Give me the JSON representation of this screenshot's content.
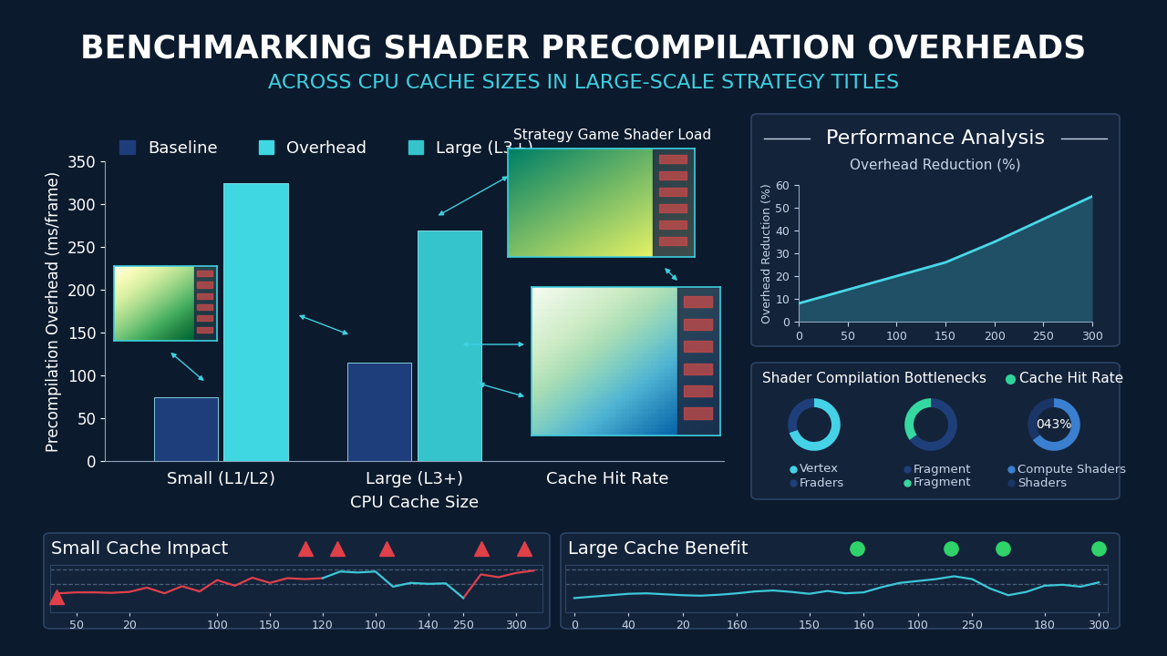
{
  "chart_data": [
    {
      "type": "bar",
      "title": "BENCHMARKING SHADER PRECOMPILATION OVERHEADS",
      "subtitle": "ACROSS CPU CACHE SIZES IN LARGE-SCALE STRATEGY TITLES",
      "annotations": [
        "Strategy Game Shader Load"
      ],
      "x_label": "CPU Cache Size",
      "y_label": "Precompilation Overhead (ms/frame)",
      "categories": [
        "Small (L1/L2)",
        "Large (L3+)",
        "Cache Hit Rate"
      ],
      "series": [
        {
          "name": "Baseline",
          "color": "#1e3d7b",
          "values": [
            75,
            115,
            null
          ]
        },
        {
          "name": "Overhead",
          "color": "#3fd8e2",
          "values": [
            325,
            null,
            null
          ]
        },
        {
          "name": "Large (L3+)",
          "color": "#35c3cc",
          "values": [
            null,
            269,
            null
          ]
        }
      ],
      "ylim": [
        0,
        350
      ],
      "yticks": [
        0,
        50,
        100,
        150,
        200,
        250,
        300,
        350
      ],
      "legend": "upper left",
      "grid": false
    },
    {
      "type": "line",
      "title": "Performance Analysis",
      "subtitle": "Overhead Reduction (%)",
      "y_label": "Overhead Reduction (%)",
      "x": [
        0,
        50,
        100,
        150,
        200,
        250,
        300
      ],
      "values": [
        8,
        14,
        20,
        26,
        35,
        45,
        55
      ],
      "color": "#48d8e8",
      "xlim": [
        0,
        300
      ],
      "xticks": [
        0,
        50,
        100,
        150,
        200,
        250,
        300
      ],
      "ylim": [
        0,
        60
      ],
      "yticks": [
        0,
        10,
        20,
        30,
        40,
        50,
        60
      ],
      "grid": false
    },
    {
      "type": "pie",
      "title": "Shader Compilation Bottlenecks",
      "categories": [
        "Vertex",
        "Fraders"
      ],
      "values": [
        70,
        30
      ],
      "colors": [
        "#45d2e6",
        "#1f3f7a"
      ]
    },
    {
      "type": "pie",
      "categories": [
        "Fragment",
        "Fragment"
      ],
      "values": [
        65,
        35
      ],
      "colors": [
        "#1f3f7a",
        "#35d8a0"
      ]
    },
    {
      "type": "pie",
      "title": "Cache Hit Rate",
      "center_label": "043%",
      "categories": [
        "Compute Shaders",
        "Shaders"
      ],
      "values": [
        65,
        35
      ],
      "colors": [
        "#3a7fd0",
        "#1a3566"
      ]
    },
    {
      "type": "line",
      "title": "Small Cache Impact",
      "categories": [
        null,
        "50",
        null,
        null,
        "20",
        null,
        null,
        null,
        null,
        "100",
        null,
        null,
        "150",
        null,
        null,
        "120",
        null,
        null,
        "100",
        null,
        null,
        "140",
        null,
        "250",
        null,
        null,
        "300",
        null
      ],
      "series": [
        {
          "color": "#e0404a",
          "values": [
            4.0,
            4.2,
            4.2,
            4.1,
            4.3,
            5.2,
            4.0,
            5.5,
            4.4,
            6.8,
            5.6,
            7.3,
            6.2,
            7.2,
            7.0,
            7.2,
            null,
            null,
            null,
            null,
            null,
            null,
            null,
            3.0,
            8.0,
            7.4,
            8.3,
            8.8
          ]
        },
        {
          "color": "#3cc8d8",
          "values": [
            null,
            null,
            null,
            null,
            null,
            null,
            null,
            null,
            null,
            null,
            null,
            null,
            null,
            null,
            null,
            7.2,
            8.6,
            8.4,
            8.6,
            5.4,
            6.2,
            6.0,
            6.1,
            3.0,
            null,
            null,
            null,
            null
          ]
        }
      ],
      "ylim": [
        0,
        10
      ],
      "yticks": [
        6,
        9
      ],
      "grid": true,
      "tick_labels": "x"
    },
    {
      "type": "line",
      "title": "Large Cache Benefit",
      "categories": [
        "0",
        null,
        null,
        "40",
        null,
        null,
        "20",
        null,
        null,
        "160",
        null,
        null,
        null,
        "150",
        null,
        null,
        "160",
        null,
        null,
        "100",
        null,
        null,
        "250",
        null,
        null,
        null,
        "180",
        null,
        null,
        "300"
      ],
      "series": [
        {
          "color": "#3cc8d8",
          "values": [
            3.0,
            3.3,
            3.6,
            3.9,
            4.0,
            3.8,
            3.6,
            3.5,
            3.7,
            4.0,
            4.4,
            4.6,
            4.3,
            3.9,
            4.5,
            4.0,
            4.2,
            5.3,
            6.2,
            6.6,
            7.0,
            7.6,
            7.0,
            5.0,
            3.6,
            4.3,
            5.6,
            5.8,
            5.4,
            6.3
          ]
        }
      ],
      "ylim": [
        0,
        10
      ],
      "yticks": [
        6,
        9
      ],
      "grid": true,
      "tick_labels": "x"
    }
  ]
}
